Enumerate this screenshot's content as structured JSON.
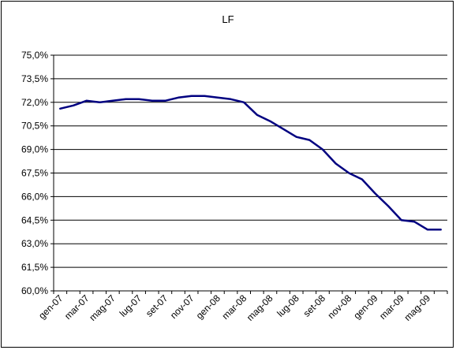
{
  "chart_data": {
    "type": "line",
    "title": "LF",
    "xlabel": "",
    "ylabel": "",
    "ylim": [
      60.0,
      75.0
    ],
    "y_ticks": [
      "60,0%",
      "61,5%",
      "63,0%",
      "64,5%",
      "66,0%",
      "67,5%",
      "69,0%",
      "70,5%",
      "72,0%",
      "73,5%",
      "75,0%"
    ],
    "x_tick_labels": [
      "gen-07",
      "mar-07",
      "mag-07",
      "lug-07",
      "set-07",
      "nov-07",
      "gen-08",
      "mar-08",
      "mag-08",
      "lug-08",
      "set-08",
      "nov-08",
      "gen-09",
      "mar-09",
      "mag-09"
    ],
    "grid": "horizontal",
    "legend": "none",
    "series": [
      {
        "color": "#000080",
        "x": [
          "gen-07",
          "feb-07",
          "mar-07",
          "apr-07",
          "mag-07",
          "giu-07",
          "lug-07",
          "ago-07",
          "set-07",
          "ott-07",
          "nov-07",
          "dic-07",
          "gen-08",
          "feb-08",
          "mar-08",
          "apr-08",
          "mag-08",
          "giu-08",
          "lug-08",
          "ago-08",
          "set-08",
          "ott-08",
          "nov-08",
          "dic-08",
          "gen-09",
          "feb-09",
          "mar-09",
          "apr-09",
          "mag-09",
          "giu-09"
        ],
        "values": [
          71.6,
          71.8,
          72.1,
          72.0,
          72.1,
          72.2,
          72.2,
          72.1,
          72.1,
          72.3,
          72.4,
          72.4,
          72.3,
          72.2,
          72.0,
          71.2,
          70.8,
          70.3,
          69.8,
          69.6,
          69.0,
          68.1,
          67.5,
          67.1,
          66.2,
          65.4,
          64.5,
          64.4,
          63.9,
          63.9
        ]
      }
    ]
  }
}
